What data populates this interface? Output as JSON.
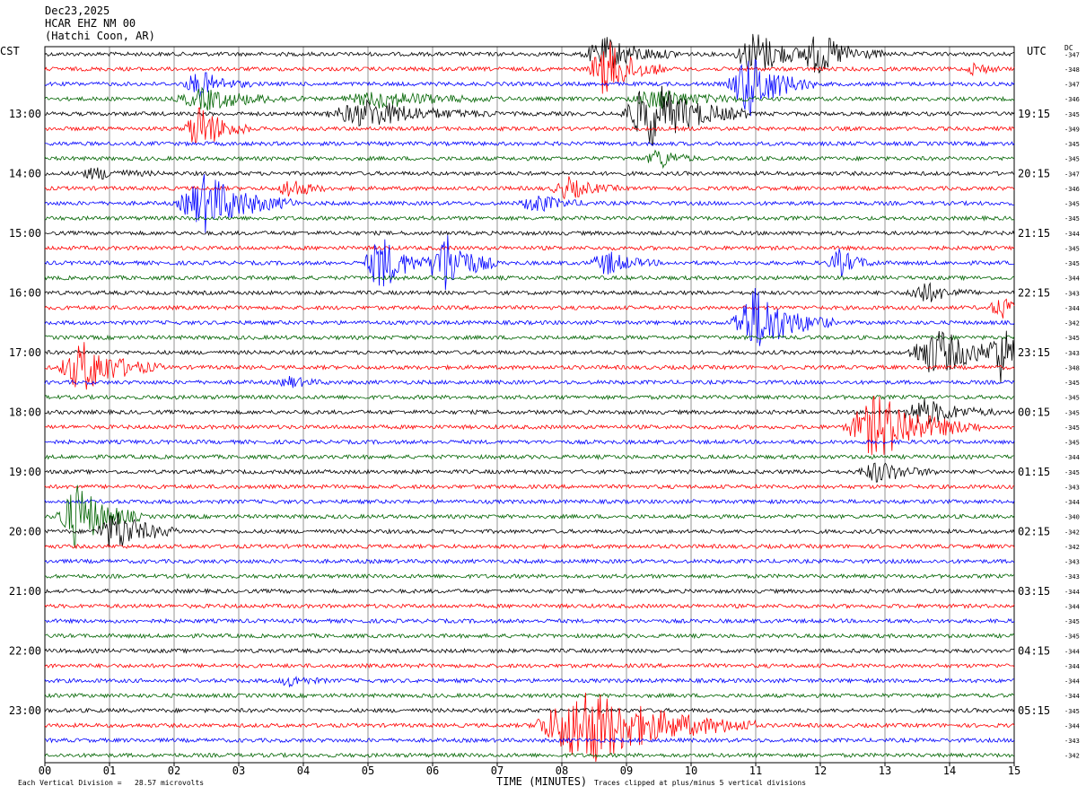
{
  "header": {
    "date": "Dec23,2025",
    "station": "HCAR EHZ NM 00",
    "location": "(Hatchi Coon, AR)"
  },
  "left_tz": "CST",
  "right_tz": "UTC",
  "dc_label": "DC",
  "footer": {
    "scale_note": "Each Vertical Division =   28.57 microvolts",
    "clip_note": "Traces clipped at plus/minus 5 vertical divisions"
  },
  "colors": {
    "trace_cycle": [
      "#000000",
      "#ff0000",
      "#0000ff",
      "#006400"
    ],
    "grid": "#000000",
    "background": "#ffffff"
  },
  "chart_data": {
    "type": "line",
    "title": "",
    "xlabel": "TIME (MINUTES)",
    "ylabel": "",
    "x_range": [
      0,
      15
    ],
    "x_ticks": [
      "00",
      "01",
      "02",
      "03",
      "04",
      "05",
      "06",
      "07",
      "08",
      "09",
      "10",
      "11",
      "12",
      "13",
      "14",
      "15"
    ],
    "grid": true,
    "trace_minutes_per_line": 15,
    "left_hour_labels": [
      "13:00",
      "14:00",
      "15:00",
      "16:00",
      "17:00",
      "18:00",
      "19:00",
      "20:00",
      "21:00",
      "22:00",
      "23:00"
    ],
    "right_hour_labels": [
      "19:15",
      "20:15",
      "21:15",
      "22:15",
      "23:15",
      "00:15",
      "01:15",
      "02:15",
      "03:15",
      "04:15",
      "05:15"
    ],
    "dc_offsets": [
      "-347",
      "-348",
      "-347",
      "-346",
      "-345",
      "-349",
      "-345",
      "-345",
      "-347",
      "-346",
      "-345",
      "-345",
      "-344",
      "-345",
      "-345",
      "-344",
      "-343",
      "-344",
      "-342",
      "-345",
      "-343",
      "-348",
      "-345",
      "-345",
      "-345",
      "-345",
      "-345",
      "-344",
      "-345",
      "-343",
      "-344",
      "-340",
      "-342",
      "-342",
      "-343",
      "-343",
      "-344",
      "-344",
      "-345",
      "-345",
      "-344",
      "-344",
      "-344",
      "-344",
      "-345",
      "-344",
      "-343",
      "-342"
    ],
    "series": [
      {
        "line": 0,
        "color_index": 0,
        "events": [
          {
            "t": 8.7,
            "amp": 1.2,
            "dur": 1.2
          },
          {
            "t": 11.0,
            "amp": 1.8,
            "dur": 1.0
          },
          {
            "t": 12.0,
            "amp": 1.5,
            "dur": 1.0
          }
        ]
      },
      {
        "line": 1,
        "color_index": 1,
        "events": [
          {
            "t": 8.7,
            "amp": 2.2,
            "dur": 0.9
          },
          {
            "t": 14.4,
            "amp": 0.5,
            "dur": 0.4
          }
        ]
      },
      {
        "line": 2,
        "color_index": 2,
        "events": [
          {
            "t": 10.9,
            "amp": 2.5,
            "dur": 1.0
          },
          {
            "t": 2.4,
            "amp": 1.0,
            "dur": 0.8
          }
        ]
      },
      {
        "line": 3,
        "color_index": 3,
        "events": [
          {
            "t": 2.5,
            "amp": 0.8,
            "dur": 1.5
          },
          {
            "t": 5.2,
            "amp": 0.6,
            "dur": 2.0
          },
          {
            "t": 9.5,
            "amp": 0.7,
            "dur": 1.5
          }
        ]
      },
      {
        "line": 4,
        "color_index": 0,
        "events": [
          {
            "t": 5.0,
            "amp": 1.0,
            "dur": 2.0
          },
          {
            "t": 9.4,
            "amp": 2.5,
            "dur": 1.5
          }
        ]
      },
      {
        "line": 5,
        "color_index": 1,
        "events": [
          {
            "t": 2.4,
            "amp": 1.8,
            "dur": 0.8
          }
        ]
      },
      {
        "line": 6,
        "color_index": 2,
        "events": []
      },
      {
        "line": 7,
        "color_index": 3,
        "events": [
          {
            "t": 9.5,
            "amp": 0.8,
            "dur": 0.6
          }
        ]
      },
      {
        "line": 8,
        "color_index": 0,
        "events": [
          {
            "t": 0.8,
            "amp": 0.4,
            "dur": 1.0
          }
        ]
      },
      {
        "line": 9,
        "color_index": 1,
        "events": [
          {
            "t": 3.8,
            "amp": 0.8,
            "dur": 0.6
          },
          {
            "t": 8.1,
            "amp": 0.8,
            "dur": 0.8
          }
        ]
      },
      {
        "line": 10,
        "color_index": 2,
        "events": [
          {
            "t": 2.5,
            "amp": 2.2,
            "dur": 1.4
          },
          {
            "t": 7.6,
            "amp": 0.7,
            "dur": 0.8
          }
        ]
      },
      {
        "line": 11,
        "color_index": 3,
        "events": []
      },
      {
        "line": 12,
        "color_index": 0,
        "events": []
      },
      {
        "line": 13,
        "color_index": 1,
        "events": []
      },
      {
        "line": 14,
        "color_index": 2,
        "events": [
          {
            "t": 5.2,
            "amp": 2.2,
            "dur": 0.8
          },
          {
            "t": 6.2,
            "amp": 2.5,
            "dur": 0.8
          },
          {
            "t": 8.7,
            "amp": 0.9,
            "dur": 0.8
          },
          {
            "t": 12.3,
            "amp": 1.0,
            "dur": 0.6
          }
        ]
      },
      {
        "line": 15,
        "color_index": 3,
        "events": []
      },
      {
        "line": 16,
        "color_index": 0,
        "events": [
          {
            "t": 13.6,
            "amp": 0.8,
            "dur": 0.8
          }
        ]
      },
      {
        "line": 17,
        "color_index": 1,
        "events": [
          {
            "t": 14.8,
            "amp": 0.8,
            "dur": 0.6
          }
        ]
      },
      {
        "line": 18,
        "color_index": 2,
        "events": [
          {
            "t": 11.0,
            "amp": 2.6,
            "dur": 1.2
          }
        ]
      },
      {
        "line": 19,
        "color_index": 3,
        "events": []
      },
      {
        "line": 20,
        "color_index": 0,
        "events": [
          {
            "t": 13.8,
            "amp": 1.8,
            "dur": 1.4
          },
          {
            "t": 14.8,
            "amp": 2.0,
            "dur": 0.6
          }
        ]
      },
      {
        "line": 21,
        "color_index": 1,
        "events": [
          {
            "t": 0.6,
            "amp": 2.0,
            "dur": 1.2
          }
        ]
      },
      {
        "line": 22,
        "color_index": 2,
        "events": [
          {
            "t": 3.8,
            "amp": 0.4,
            "dur": 0.6
          }
        ]
      },
      {
        "line": 23,
        "color_index": 3,
        "events": []
      },
      {
        "line": 24,
        "color_index": 0,
        "events": [
          {
            "t": 13.6,
            "amp": 1.0,
            "dur": 1.2
          }
        ]
      },
      {
        "line": 25,
        "color_index": 1,
        "events": [
          {
            "t": 12.9,
            "amp": 2.5,
            "dur": 1.6
          }
        ]
      },
      {
        "line": 26,
        "color_index": 2,
        "events": []
      },
      {
        "line": 27,
        "color_index": 3,
        "events": []
      },
      {
        "line": 28,
        "color_index": 0,
        "events": [
          {
            "t": 12.9,
            "amp": 0.8,
            "dur": 1.0
          }
        ]
      },
      {
        "line": 29,
        "color_index": 1,
        "events": []
      },
      {
        "line": 30,
        "color_index": 2,
        "events": []
      },
      {
        "line": 31,
        "color_index": 3,
        "events": [
          {
            "t": 0.5,
            "amp": 2.5,
            "dur": 1.0
          }
        ]
      },
      {
        "line": 32,
        "color_index": 0,
        "events": [
          {
            "t": 1.1,
            "amp": 1.6,
            "dur": 1.0
          }
        ]
      },
      {
        "line": 33,
        "color_index": 1,
        "events": []
      },
      {
        "line": 34,
        "color_index": 2,
        "events": []
      },
      {
        "line": 35,
        "color_index": 3,
        "events": []
      },
      {
        "line": 36,
        "color_index": 0,
        "events": []
      },
      {
        "line": 37,
        "color_index": 1,
        "events": []
      },
      {
        "line": 38,
        "color_index": 2,
        "events": []
      },
      {
        "line": 39,
        "color_index": 3,
        "events": []
      },
      {
        "line": 40,
        "color_index": 0,
        "events": []
      },
      {
        "line": 41,
        "color_index": 1,
        "events": []
      },
      {
        "line": 42,
        "color_index": 2,
        "events": [
          {
            "t": 3.8,
            "amp": 0.4,
            "dur": 0.6
          }
        ]
      },
      {
        "line": 43,
        "color_index": 3,
        "events": []
      },
      {
        "line": 44,
        "color_index": 0,
        "events": []
      },
      {
        "line": 45,
        "color_index": 1,
        "events": [
          {
            "t": 8.4,
            "amp": 3.0,
            "dur": 2.6
          }
        ]
      },
      {
        "line": 46,
        "color_index": 2,
        "events": []
      },
      {
        "line": 47,
        "color_index": 3,
        "events": []
      }
    ]
  }
}
